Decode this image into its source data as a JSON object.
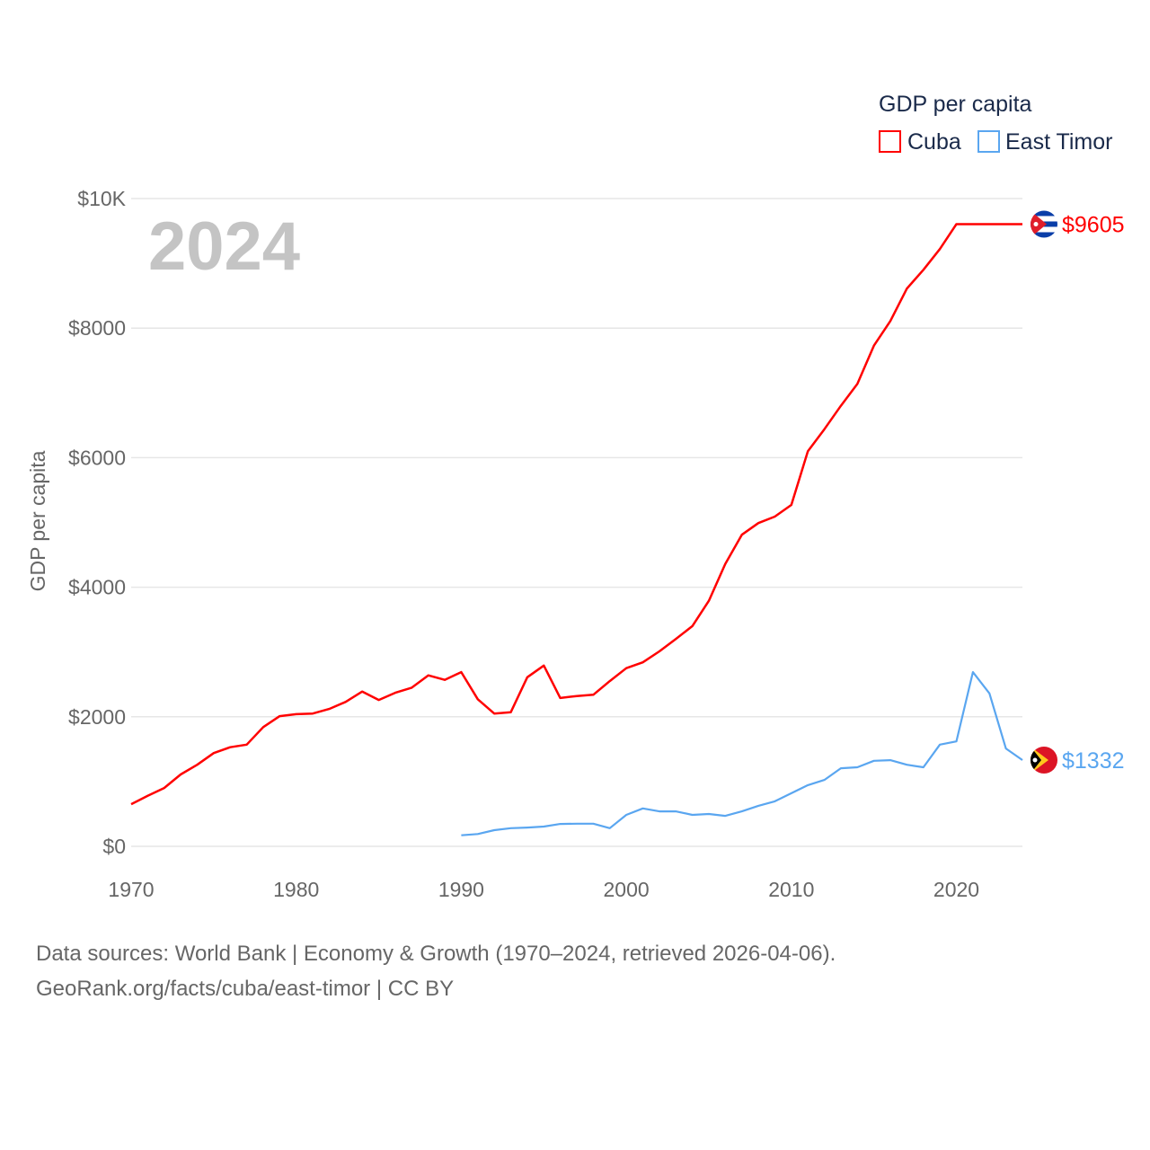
{
  "chart_data": {
    "type": "line",
    "title": "",
    "watermark_year": "2024",
    "ylabel": "GDP per capita",
    "xlabel": "",
    "xlim": [
      1970,
      2024
    ],
    "ylim": [
      0,
      10000
    ],
    "x_ticks": [
      "1970",
      "1980",
      "1990",
      "2000",
      "2010",
      "2020"
    ],
    "x_tick_values": [
      1970,
      1980,
      1990,
      2000,
      2010,
      2020
    ],
    "y_ticks": [
      "$0",
      "$2000",
      "$4000",
      "$6000",
      "$8000",
      "$10K"
    ],
    "y_tick_values": [
      0,
      2000,
      4000,
      6000,
      8000,
      10000
    ],
    "grid": true,
    "legend": {
      "title": "GDP per capita",
      "placement": "top-right"
    },
    "series": [
      {
        "name": "Cuba",
        "color": "#ff0000",
        "end_label": "$9605",
        "flag": "cuba-flag",
        "x": [
          1970,
          1971,
          1972,
          1973,
          1974,
          1975,
          1976,
          1977,
          1978,
          1979,
          1980,
          1981,
          1982,
          1983,
          1984,
          1985,
          1986,
          1987,
          1988,
          1989,
          1990,
          1991,
          1992,
          1993,
          1994,
          1995,
          1996,
          1997,
          1998,
          1999,
          2000,
          2001,
          2002,
          2003,
          2004,
          2005,
          2006,
          2007,
          2008,
          2009,
          2010,
          2011,
          2012,
          2013,
          2014,
          2015,
          2016,
          2017,
          2018,
          2019,
          2020,
          2021,
          2022,
          2023,
          2024
        ],
        "values": [
          650,
          780,
          900,
          1110,
          1260,
          1440,
          1530,
          1570,
          1840,
          2010,
          2040,
          2050,
          2120,
          2230,
          2390,
          2260,
          2370,
          2450,
          2640,
          2570,
          2690,
          2270,
          2050,
          2070,
          2610,
          2790,
          2290,
          2320,
          2340,
          2550,
          2750,
          2840,
          3010,
          3200,
          3400,
          3790,
          4360,
          4810,
          4990,
          5090,
          5270,
          6100,
          6440,
          6800,
          7140,
          7730,
          8110,
          8610,
          8900,
          9220,
          9605,
          9605,
          9605,
          9605,
          9605
        ]
      },
      {
        "name": "East Timor",
        "color": "#5aa6f0",
        "end_label": "$1332",
        "flag": "east-timor-flag",
        "x": [
          1990,
          1991,
          1992,
          1993,
          1994,
          1995,
          1996,
          1997,
          1998,
          1999,
          2000,
          2001,
          2002,
          2003,
          2004,
          2005,
          2006,
          2007,
          2008,
          2009,
          2010,
          2011,
          2012,
          2013,
          2014,
          2015,
          2016,
          2017,
          2018,
          2019,
          2020,
          2021,
          2022,
          2023,
          2024
        ],
        "values": [
          170,
          190,
          250,
          280,
          290,
          305,
          345,
          350,
          350,
          280,
          485,
          585,
          540,
          540,
          485,
          500,
          470,
          540,
          625,
          695,
          820,
          945,
          1025,
          1205,
          1220,
          1320,
          1330,
          1260,
          1220,
          1570,
          1620,
          2690,
          2360,
          1510,
          1332
        ]
      }
    ]
  },
  "footer": {
    "line1": "Data sources: World Bank | Economy & Growth (1970–2024, retrieved 2026-04-06).",
    "line2": "GeoRank.org/facts/cuba/east-timor | CC BY"
  }
}
